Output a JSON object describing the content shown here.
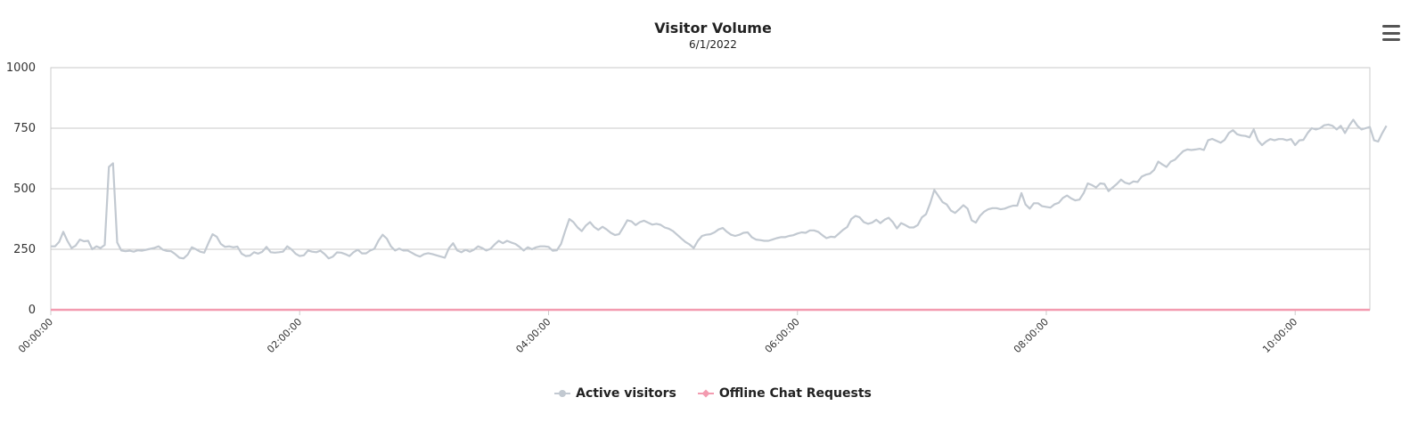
{
  "header": {
    "title": "Visitor Volume",
    "subtitle": "6/1/2022"
  },
  "menu": {
    "icon": "hamburger-menu-icon"
  },
  "legend": {
    "items": [
      {
        "label": "Active visitors",
        "color": "#c2c9d1",
        "marker": "circle"
      },
      {
        "label": "Offline Chat Requests",
        "color": "#f39bb0",
        "marker": "diamond"
      }
    ]
  },
  "chart_data": {
    "type": "line",
    "title": "Visitor Volume",
    "subtitle": "6/1/2022",
    "xlabel": "",
    "ylabel": "",
    "ylim": [
      0,
      1000
    ],
    "yticks": [
      0,
      250,
      500,
      750,
      1000
    ],
    "xlim_minutes": [
      0,
      636
    ],
    "xticks": [
      "00:00:00",
      "02:00:00",
      "04:00:00",
      "06:00:00",
      "08:00:00",
      "10:00:00"
    ],
    "grid": true,
    "legend_position": "bottom-center",
    "series": [
      {
        "name": "Active visitors",
        "color": "#c2c9d1",
        "x_minutes_start": 0,
        "x_minutes_step": 2,
        "values": [
          262,
          262,
          280,
          322,
          285,
          255,
          265,
          290,
          283,
          285,
          250,
          262,
          255,
          268,
          590,
          605,
          278,
          245,
          242,
          244,
          240,
          246,
          244,
          248,
          252,
          256,
          262,
          248,
          243,
          242,
          230,
          215,
          212,
          228,
          258,
          250,
          240,
          236,
          276,
          312,
          302,
          272,
          260,
          262,
          258,
          261,
          232,
          222,
          224,
          238,
          232,
          240,
          260,
          238,
          236,
          238,
          240,
          262,
          250,
          232,
          222,
          225,
          245,
          240,
          238,
          244,
          230,
          212,
          220,
          237,
          236,
          230,
          222,
          238,
          248,
          233,
          233,
          245,
          252,
          286,
          310,
          294,
          262,
          245,
          253,
          245,
          245,
          236,
          226,
          220,
          230,
          234,
          230,
          225,
          220,
          215,
          255,
          275,
          245,
          238,
          248,
          240,
          248,
          262,
          255,
          245,
          252,
          270,
          285,
          275,
          285,
          278,
          272,
          260,
          245,
          258,
          250,
          258,
          262,
          262,
          260,
          244,
          246,
          272,
          325,
          375,
          362,
          340,
          325,
          348,
          362,
          342,
          330,
          343,
          332,
          318,
          309,
          312,
          340,
          370,
          365,
          350,
          362,
          368,
          360,
          352,
          355,
          351,
          340,
          335,
          325,
          310,
          295,
          280,
          270,
          255,
          285,
          305,
          310,
          312,
          320,
          332,
          338,
          322,
          310,
          305,
          310,
          318,
          320,
          300,
          290,
          288,
          285,
          285,
          290,
          296,
          300,
          300,
          305,
          308,
          315,
          320,
          318,
          328,
          328,
          322,
          308,
          296,
          302,
          300,
          315,
          330,
          342,
          375,
          388,
          382,
          362,
          355,
          360,
          372,
          358,
          372,
          380,
          362,
          336,
          358,
          350,
          340,
          340,
          350,
          382,
          395,
          440,
          495,
          470,
          445,
          435,
          410,
          400,
          415,
          432,
          418,
          370,
          360,
          388,
          405,
          415,
          420,
          420,
          415,
          418,
          425,
          430,
          430,
          482,
          435,
          418,
          440,
          440,
          428,
          425,
          422,
          436,
          442,
          462,
          472,
          460,
          452,
          455,
          482,
          522,
          515,
          505,
          522,
          520,
          490,
          505,
          520,
          538,
          525,
          520,
          530,
          528,
          550,
          558,
          562,
          578,
          612,
          600,
          590,
          612,
          620,
          638,
          655,
          662,
          660,
          662,
          665,
          660,
          700,
          706,
          698,
          690,
          702,
          730,
          742,
          725,
          720,
          718,
          712,
          745,
          700,
          680,
          695,
          705,
          700,
          705,
          705,
          700,
          705,
          680,
          700,
          702,
          730,
          750,
          745,
          750,
          762,
          765,
          760,
          745,
          760,
          730,
          760,
          785,
          760,
          745,
          750,
          755,
          700,
          695,
          730,
          760
        ]
      },
      {
        "name": "Offline Chat Requests",
        "color": "#f39bb0",
        "x_minutes_start": 0,
        "x_minutes_step": 2,
        "values_constant": 0
      }
    ]
  }
}
